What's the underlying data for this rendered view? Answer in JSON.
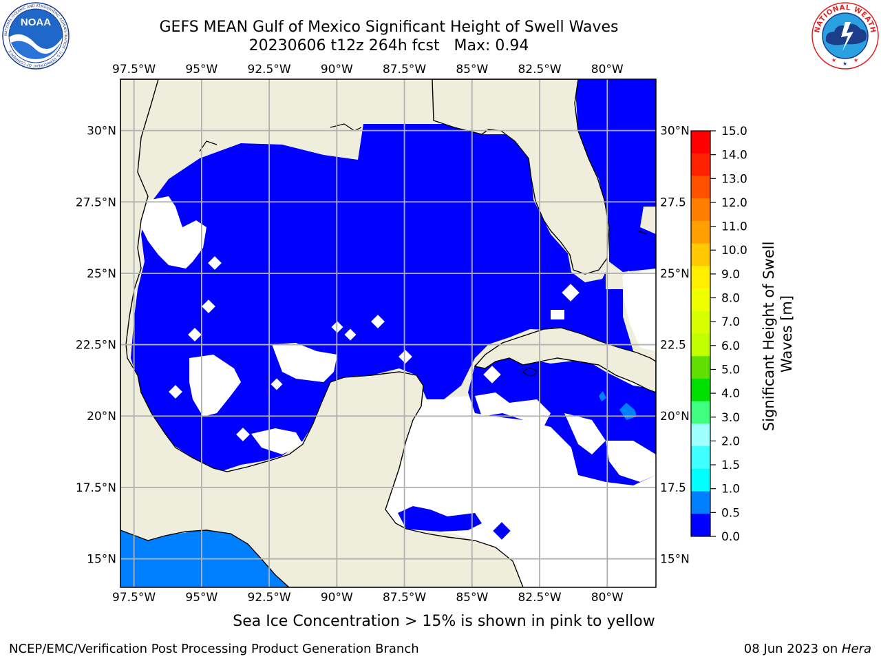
{
  "header": {
    "title_line1": "GEFS MEAN Gulf of Mexico Significant Height of Swell Waves",
    "title_line2": "20230606 t12z 264h fcst   Max: 0.94"
  },
  "logos": {
    "left": {
      "name": "NOAA",
      "ring_text": "NATIONAL OCEANIC AND ATMOSPHERIC ADMINISTRATION · U.S. DEPARTMENT OF COMMERCE"
    },
    "right": {
      "ring_text": "NATIONAL WEATHER SERVICE"
    }
  },
  "map": {
    "lon_labels": [
      "97.5°W",
      "95°W",
      "92.5°W",
      "90°W",
      "87.5°W",
      "85°W",
      "82.5°W",
      "80°W"
    ],
    "lon_values": [
      -97.5,
      -95,
      -92.5,
      -90,
      -87.5,
      -85,
      -82.5,
      -80
    ],
    "lat_labels": [
      "30°N",
      "27.5°N",
      "25°N",
      "22.5°N",
      "20°N",
      "17.5°N",
      "15°N"
    ],
    "lat_values": [
      30,
      27.5,
      25,
      22.5,
      20,
      17.5,
      15
    ],
    "right_lat_labels": [
      "30°N",
      "27.5",
      "25°N",
      "22.5",
      "20°N",
      "17.5",
      "15°N"
    ],
    "extent": {
      "lon_min": -98,
      "lon_max": -78.2,
      "lat_min": 14,
      "lat_max": 31.8
    },
    "colors": {
      "land": "#efeedc",
      "ocean_low": "#0000ff",
      "ocean_mid": "#0080ff",
      "no_data": "#ffffff",
      "grid": "#b0b0b0",
      "coast": "#000000"
    }
  },
  "colorbar": {
    "label": "Significant Height of Swell Waves [m]",
    "ticks": [
      "15.0",
      "14.0",
      "13.0",
      "12.0",
      "11.0",
      "10.0",
      "9.0",
      "8.0",
      "7.0",
      "6.0",
      "5.0",
      "4.0",
      "3.0",
      "2.0",
      "1.5",
      "1.0",
      "0.5",
      "0.0"
    ],
    "colors": [
      "#ff0000",
      "#ff2200",
      "#ff5000",
      "#ff7f00",
      "#ffa000",
      "#ffc800",
      "#ffee00",
      "#f0ff00",
      "#d8ff00",
      "#c0ff00",
      "#60e000",
      "#00e000",
      "#40ff80",
      "#a0ffff",
      "#40ffff",
      "#00ffff",
      "#0080ff",
      "#0000ff"
    ]
  },
  "footer": {
    "ice_note": "Sea Ice Concentration > 15% is shown in pink to yellow",
    "credit": "NCEP/EMC/Verification Post Processing Product Generation Branch",
    "date": "08 Jun 2023 on ",
    "host": "Hera"
  }
}
